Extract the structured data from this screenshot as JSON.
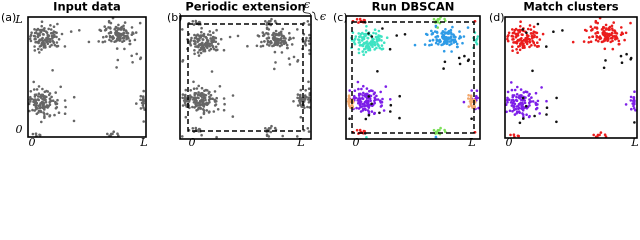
{
  "panels": [
    {
      "label": "(a)",
      "title": "Input data"
    },
    {
      "label": "(b)",
      "title": "Periodic extension"
    },
    {
      "label": "(c)",
      "title": "Run DBSCAN"
    },
    {
      "label": "(d)",
      "title": "Match clusters"
    }
  ],
  "axis": {
    "y_top": "L",
    "y_bottom": "0",
    "x_left": "0",
    "x_right": "L"
  },
  "epsilon": "ϵ"
}
